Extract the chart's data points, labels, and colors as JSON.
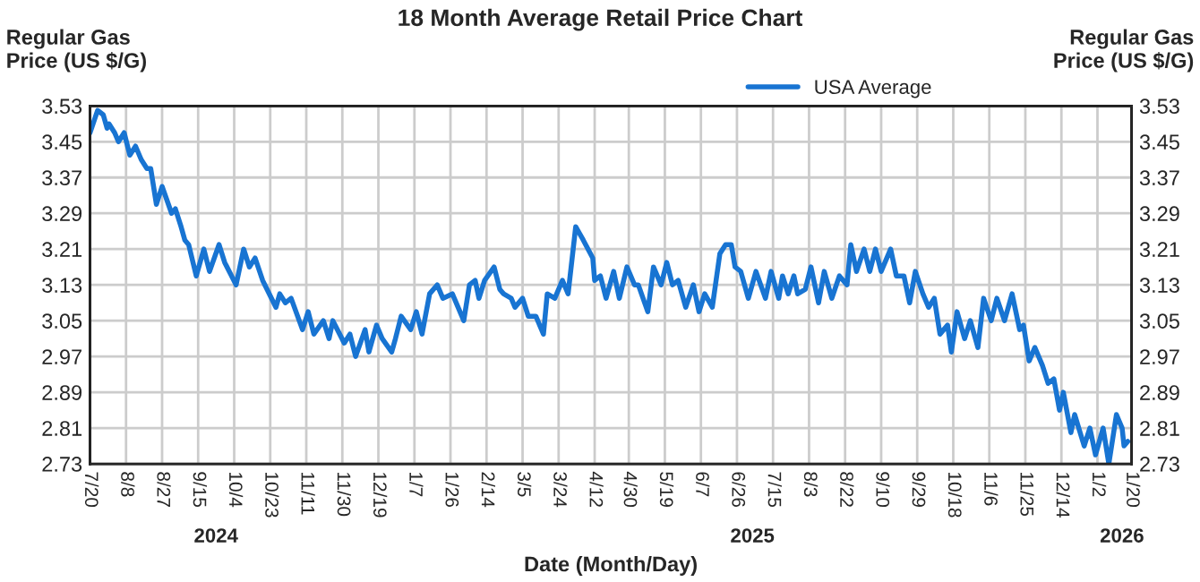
{
  "chart_data": {
    "type": "line",
    "title": "18 Month Average Retail Price Chart",
    "xlabel": "Date (Month/Day)",
    "ylabel": "Regular Gas\nPrice (US $/G)",
    "y2label": "Regular Gas\nPrice (US $/G)",
    "series": [
      {
        "name": "USA Average",
        "color": "#1874d2",
        "x": [
          "2024-07-20",
          "2024-07-24",
          "2024-07-27",
          "2024-07-29",
          "2024-07-30",
          "2024-08-02",
          "2024-08-04",
          "2024-08-07",
          "2024-08-10",
          "2024-08-13",
          "2024-08-16",
          "2024-08-19",
          "2024-08-21",
          "2024-08-24",
          "2024-08-27",
          "2024-09-01",
          "2024-09-03",
          "2024-09-06",
          "2024-09-08",
          "2024-09-10",
          "2024-09-14",
          "2024-09-18",
          "2024-09-21",
          "2024-09-26",
          "2024-09-29",
          "2024-10-05",
          "2024-10-09",
          "2024-10-12",
          "2024-10-15",
          "2024-10-19",
          "2024-10-26",
          "2024-10-28",
          "2024-10-31",
          "2024-11-03",
          "2024-11-09",
          "2024-11-12",
          "2024-11-15",
          "2024-11-20",
          "2024-11-23",
          "2024-11-25",
          "2024-12-01",
          "2024-12-04",
          "2024-12-07",
          "2024-12-12",
          "2024-12-14",
          "2024-12-18",
          "2024-12-21",
          "2024-12-26",
          "2024-12-28",
          "2024-12-31",
          "2025-01-05",
          "2025-01-08",
          "2025-01-11",
          "2025-01-15",
          "2025-01-19",
          "2025-01-22",
          "2025-01-27",
          "2025-02-02",
          "2025-02-05",
          "2025-02-08",
          "2025-02-10",
          "2025-02-13",
          "2025-02-18",
          "2025-02-21",
          "2025-02-23",
          "2025-02-27",
          "2025-03-01",
          "2025-03-05",
          "2025-03-08",
          "2025-03-12",
          "2025-03-16",
          "2025-03-18",
          "2025-03-22",
          "2025-03-26",
          "2025-03-29",
          "2025-04-02",
          "2025-04-06",
          "2025-04-11",
          "2025-04-12",
          "2025-04-15",
          "2025-04-18",
          "2025-04-22",
          "2025-04-25",
          "2025-04-29",
          "2025-05-03",
          "2025-05-05",
          "2025-05-10",
          "2025-05-13",
          "2025-05-17",
          "2025-05-20",
          "2025-05-23",
          "2025-05-26",
          "2025-05-30",
          "2025-06-03",
          "2025-06-06",
          "2025-06-09",
          "2025-06-13",
          "2025-06-17",
          "2025-06-20",
          "2025-06-23",
          "2025-06-25",
          "2025-06-28",
          "2025-07-02",
          "2025-07-06",
          "2025-07-11",
          "2025-07-14",
          "2025-07-18",
          "2025-07-20",
          "2025-07-23",
          "2025-07-26",
          "2025-07-28",
          "2025-08-01",
          "2025-08-04",
          "2025-08-08",
          "2025-08-11",
          "2025-08-15",
          "2025-08-19",
          "2025-08-23",
          "2025-08-25",
          "2025-08-28",
          "2025-09-01",
          "2025-09-04",
          "2025-09-07",
          "2025-09-10",
          "2025-09-15",
          "2025-09-18",
          "2025-09-22",
          "2025-09-25",
          "2025-09-28",
          "2025-10-02",
          "2025-10-05",
          "2025-10-08",
          "2025-10-11",
          "2025-10-15",
          "2025-10-17",
          "2025-10-20",
          "2025-10-24",
          "2025-10-27",
          "2025-10-31",
          "2025-11-03",
          "2025-11-07",
          "2025-11-10",
          "2025-11-14",
          "2025-11-18",
          "2025-11-22",
          "2025-11-24",
          "2025-11-27",
          "2025-11-30",
          "2025-12-04",
          "2025-12-07",
          "2025-12-10",
          "2025-12-13",
          "2025-12-15",
          "2025-12-19",
          "2025-12-21",
          "2025-12-26",
          "2025-12-29",
          "2026-01-01",
          "2026-01-05",
          "2026-01-08",
          "2026-01-12",
          "2026-01-15",
          "2026-01-16",
          "2026-01-18"
        ],
        "values": [
          3.47,
          3.52,
          3.51,
          3.48,
          3.49,
          3.47,
          3.45,
          3.47,
          3.42,
          3.44,
          3.41,
          3.39,
          3.39,
          3.31,
          3.35,
          3.29,
          3.3,
          3.26,
          3.23,
          3.22,
          3.15,
          3.21,
          3.16,
          3.22,
          3.18,
          3.13,
          3.21,
          3.17,
          3.19,
          3.14,
          3.08,
          3.11,
          3.09,
          3.1,
          3.03,
          3.07,
          3.02,
          3.05,
          3.01,
          3.05,
          3.0,
          3.02,
          2.97,
          3.03,
          2.98,
          3.04,
          3.01,
          2.98,
          3.01,
          3.06,
          3.03,
          3.07,
          3.02,
          3.11,
          3.13,
          3.1,
          3.11,
          3.05,
          3.13,
          3.14,
          3.1,
          3.14,
          3.17,
          3.12,
          3.11,
          3.1,
          3.08,
          3.1,
          3.06,
          3.06,
          3.02,
          3.11,
          3.1,
          3.14,
          3.11,
          3.26,
          3.23,
          3.19,
          3.14,
          3.15,
          3.1,
          3.16,
          3.1,
          3.17,
          3.13,
          3.13,
          3.07,
          3.17,
          3.13,
          3.18,
          3.13,
          3.14,
          3.08,
          3.13,
          3.07,
          3.11,
          3.08,
          3.2,
          3.22,
          3.22,
          3.17,
          3.16,
          3.1,
          3.16,
          3.1,
          3.16,
          3.1,
          3.15,
          3.11,
          3.15,
          3.11,
          3.12,
          3.17,
          3.09,
          3.16,
          3.1,
          3.15,
          3.13,
          3.22,
          3.16,
          3.21,
          3.16,
          3.21,
          3.16,
          3.21,
          3.15,
          3.15,
          3.09,
          3.16,
          3.11,
          3.08,
          3.1,
          3.02,
          3.04,
          2.98,
          3.07,
          3.01,
          3.05,
          2.99,
          3.1,
          3.05,
          3.1,
          3.05,
          3.11,
          3.03,
          3.04,
          2.96,
          2.99,
          2.95,
          2.91,
          2.92,
          2.85,
          2.89,
          2.8,
          2.84,
          2.77,
          2.81,
          2.75,
          2.81,
          2.73,
          2.84,
          2.81,
          2.77,
          2.78
        ]
      }
    ],
    "xlim": [
      "2024-07-20",
      "2026-01-20"
    ],
    "xticks": [
      {
        "value": "2024-07-20",
        "label": "7/20"
      },
      {
        "value": "2024-08-08",
        "label": "8/8"
      },
      {
        "value": "2024-08-27",
        "label": "8/27"
      },
      {
        "value": "2024-09-15",
        "label": "9/15"
      },
      {
        "value": "2024-10-04",
        "label": "10/4"
      },
      {
        "value": "2024-10-23",
        "label": "10/23"
      },
      {
        "value": "2024-11-11",
        "label": "11/11"
      },
      {
        "value": "2024-11-30",
        "label": "11/30"
      },
      {
        "value": "2024-12-19",
        "label": "12/19"
      },
      {
        "value": "2025-01-07",
        "label": "1/7"
      },
      {
        "value": "2025-01-26",
        "label": "1/26"
      },
      {
        "value": "2025-02-14",
        "label": "2/14"
      },
      {
        "value": "2025-03-05",
        "label": "3/5"
      },
      {
        "value": "2025-03-24",
        "label": "3/24"
      },
      {
        "value": "2025-04-12",
        "label": "4/12"
      },
      {
        "value": "2025-04-30",
        "label": "4/30"
      },
      {
        "value": "2025-05-19",
        "label": "5/19"
      },
      {
        "value": "2025-06-07",
        "label": "6/7"
      },
      {
        "value": "2025-06-26",
        "label": "6/26"
      },
      {
        "value": "2025-07-15",
        "label": "7/15"
      },
      {
        "value": "2025-08-03",
        "label": "8/3"
      },
      {
        "value": "2025-08-22",
        "label": "8/22"
      },
      {
        "value": "2025-09-10",
        "label": "9/10"
      },
      {
        "value": "2025-09-29",
        "label": "9/29"
      },
      {
        "value": "2025-10-18",
        "label": "10/18"
      },
      {
        "value": "2025-11-06",
        "label": "11/6"
      },
      {
        "value": "2025-11-25",
        "label": "11/25"
      },
      {
        "value": "2025-12-14",
        "label": "12/14"
      },
      {
        "value": "2026-01-02",
        "label": "1/2"
      },
      {
        "value": "2026-01-20",
        "label": "1/20"
      }
    ],
    "ylim": [
      2.73,
      3.53
    ],
    "yticks": [
      2.73,
      2.81,
      2.89,
      2.97,
      3.05,
      3.13,
      3.21,
      3.29,
      3.37,
      3.45,
      3.53
    ],
    "y2lim": [
      2.73,
      3.53
    ],
    "y2ticks": [
      2.73,
      2.81,
      2.89,
      2.97,
      3.05,
      3.13,
      3.21,
      3.29,
      3.37,
      3.45,
      3.53
    ],
    "annotations": [
      "2024",
      "2025",
      "2026"
    ],
    "grid": true,
    "legend": "top",
    "line_style": "solid",
    "marker": "none"
  }
}
